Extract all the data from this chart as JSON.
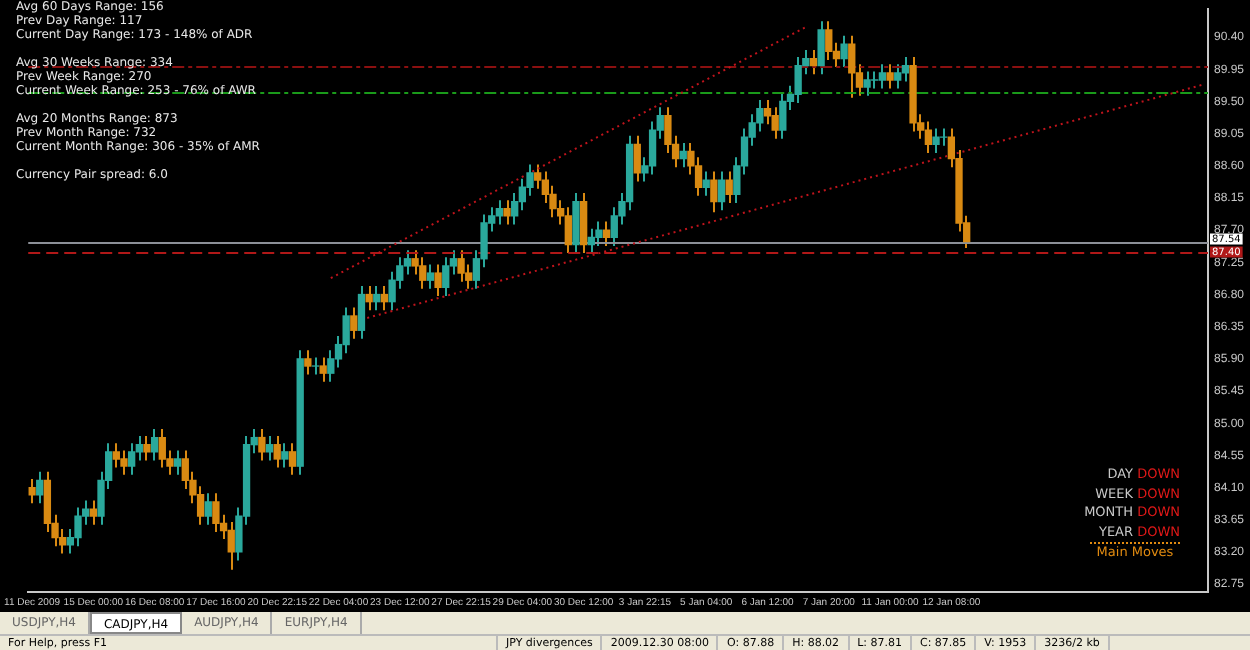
{
  "chart_data": {
    "type": "candlestick",
    "categories": [
      "11 Dec 2009",
      null,
      null,
      null,
      null,
      null,
      null,
      null,
      "15 Dec 00:00",
      null,
      null,
      null,
      null,
      null,
      null,
      null,
      "16 Dec 08:00",
      null,
      null,
      null,
      null,
      null,
      null,
      null,
      "17 Dec 16:00",
      null,
      null,
      null,
      null,
      null,
      null,
      null,
      "20 Dec 22:15",
      null,
      null,
      null,
      null,
      null,
      null,
      null,
      "22 Dec 04:00",
      null,
      null,
      null,
      null,
      null,
      null,
      null,
      "23 Dec 12:00",
      null,
      null,
      null,
      null,
      null,
      null,
      null,
      "27 Dec 22:15",
      null,
      null,
      null,
      null,
      null,
      null,
      null,
      "29 Dec 04:00",
      null,
      null,
      null,
      null,
      null,
      null,
      null,
      "30 Dec 12:00",
      null,
      null,
      null,
      null,
      null,
      null,
      null,
      "3 Jan 22:15",
      null,
      null,
      null,
      null,
      null,
      null,
      null,
      "5 Jan 04:00",
      null,
      null,
      null,
      null,
      null,
      null,
      null,
      "6 Jan 12:00",
      null,
      null,
      null,
      null,
      null,
      null,
      null,
      "7 Jan 20:00",
      null,
      null,
      null,
      null,
      null,
      null,
      null,
      "11 Jan 00:00",
      null,
      null,
      null,
      null,
      null,
      null,
      null,
      "12 Jan 08:00",
      null,
      null,
      null,
      null,
      null,
      null,
      null,
      null,
      null,
      null,
      null,
      null,
      null,
      null,
      null,
      null,
      null,
      null,
      null,
      null,
      null,
      null,
      null,
      null,
      null,
      null,
      null,
      null,
      null,
      null,
      null,
      null,
      null
    ],
    "ohlc": [
      [
        84.1,
        84.22,
        83.88,
        84.0
      ],
      [
        84.0,
        84.32,
        83.88,
        84.2
      ],
      [
        84.2,
        84.32,
        83.48,
        83.6
      ],
      [
        83.6,
        83.72,
        83.28,
        83.4
      ],
      [
        83.4,
        83.52,
        83.18,
        83.3
      ],
      [
        83.3,
        83.52,
        83.18,
        83.4
      ],
      [
        83.4,
        83.82,
        83.28,
        83.7
      ],
      [
        83.7,
        83.92,
        83.58,
        83.8
      ],
      [
        83.8,
        83.92,
        83.58,
        83.7
      ],
      [
        83.7,
        84.32,
        83.58,
        84.2
      ],
      [
        84.2,
        84.72,
        84.08,
        84.6
      ],
      [
        84.6,
        84.72,
        84.38,
        84.5
      ],
      [
        84.5,
        84.62,
        84.28,
        84.4
      ],
      [
        84.4,
        84.72,
        84.28,
        84.6
      ],
      [
        84.6,
        84.82,
        84.48,
        84.7
      ],
      [
        84.7,
        84.82,
        84.48,
        84.6
      ],
      [
        84.6,
        84.92,
        84.48,
        84.8
      ],
      [
        84.8,
        84.92,
        84.38,
        84.5
      ],
      [
        84.5,
        84.62,
        84.28,
        84.4
      ],
      [
        84.4,
        84.62,
        84.28,
        84.5
      ],
      [
        84.5,
        84.62,
        84.08,
        84.2
      ],
      [
        84.2,
        84.32,
        83.88,
        84.0
      ],
      [
        84.0,
        84.12,
        83.58,
        83.7
      ],
      [
        83.7,
        84.02,
        83.58,
        83.9
      ],
      [
        83.9,
        84.02,
        83.48,
        83.6
      ],
      [
        83.6,
        83.72,
        83.38,
        83.5
      ],
      [
        83.5,
        83.62,
        82.95,
        83.2
      ],
      [
        83.2,
        83.82,
        83.08,
        83.7
      ],
      [
        83.7,
        84.82,
        83.58,
        84.7
      ],
      [
        84.7,
        84.92,
        84.58,
        84.8
      ],
      [
        84.8,
        84.92,
        84.48,
        84.6
      ],
      [
        84.6,
        84.82,
        84.48,
        84.7
      ],
      [
        84.7,
        84.82,
        84.38,
        84.5
      ],
      [
        84.5,
        84.72,
        84.38,
        84.6
      ],
      [
        84.6,
        84.72,
        84.28,
        84.4
      ],
      [
        84.4,
        86.02,
        84.28,
        85.9
      ],
      [
        85.9,
        86.02,
        85.68,
        85.8
      ],
      [
        85.8,
        85.92,
        85.68,
        85.8
      ],
      [
        85.8,
        85.92,
        85.58,
        85.7
      ],
      [
        85.7,
        86.02,
        85.58,
        85.9
      ],
      [
        85.9,
        86.22,
        85.78,
        86.1
      ],
      [
        86.1,
        86.62,
        85.98,
        86.5
      ],
      [
        86.5,
        86.62,
        86.18,
        86.3
      ],
      [
        86.3,
        86.92,
        86.18,
        86.8
      ],
      [
        86.8,
        86.92,
        86.58,
        86.7
      ],
      [
        86.7,
        86.92,
        86.58,
        86.8
      ],
      [
        86.8,
        86.92,
        86.58,
        86.7
      ],
      [
        86.7,
        87.12,
        86.58,
        87.0
      ],
      [
        87.0,
        87.32,
        86.88,
        87.2
      ],
      [
        87.2,
        87.42,
        87.08,
        87.3
      ],
      [
        87.3,
        87.42,
        87.08,
        87.2
      ],
      [
        87.2,
        87.32,
        86.88,
        87.0
      ],
      [
        87.0,
        87.22,
        86.88,
        87.1
      ],
      [
        87.1,
        87.22,
        86.78,
        86.9
      ],
      [
        86.9,
        87.32,
        86.78,
        87.2
      ],
      [
        87.2,
        87.42,
        87.08,
        87.3
      ],
      [
        87.3,
        87.42,
        86.98,
        87.1
      ],
      [
        87.1,
        87.22,
        86.88,
        87.0
      ],
      [
        87.0,
        87.42,
        86.88,
        87.3
      ],
      [
        87.3,
        87.92,
        87.18,
        87.8
      ],
      [
        87.8,
        88.02,
        87.68,
        87.9
      ],
      [
        87.9,
        88.12,
        87.78,
        88.0
      ],
      [
        88.0,
        88.12,
        87.78,
        87.9
      ],
      [
        87.9,
        88.22,
        87.78,
        88.1
      ],
      [
        88.1,
        88.42,
        87.98,
        88.3
      ],
      [
        88.3,
        88.62,
        88.18,
        88.5
      ],
      [
        88.5,
        88.62,
        88.28,
        88.4
      ],
      [
        88.4,
        88.52,
        88.08,
        88.2
      ],
      [
        88.2,
        88.32,
        87.88,
        88.0
      ],
      [
        88.0,
        88.12,
        87.78,
        87.9
      ],
      [
        87.9,
        88.02,
        87.38,
        87.5
      ],
      [
        87.5,
        88.22,
        87.38,
        88.1
      ],
      [
        88.1,
        88.22,
        87.38,
        87.5
      ],
      [
        87.5,
        87.72,
        87.38,
        87.6
      ],
      [
        87.6,
        87.82,
        87.48,
        87.7
      ],
      [
        87.7,
        87.82,
        87.48,
        87.6
      ],
      [
        87.6,
        88.02,
        87.48,
        87.9
      ],
      [
        87.9,
        88.22,
        87.78,
        88.1
      ],
      [
        88.1,
        89.02,
        87.98,
        88.9
      ],
      [
        88.9,
        89.02,
        88.38,
        88.5
      ],
      [
        88.5,
        88.72,
        88.38,
        88.6
      ],
      [
        88.6,
        89.22,
        88.48,
        89.1
      ],
      [
        89.1,
        89.42,
        88.98,
        89.3
      ],
      [
        89.3,
        89.42,
        88.78,
        88.9
      ],
      [
        88.9,
        89.02,
        88.58,
        88.7
      ],
      [
        88.7,
        88.92,
        88.58,
        88.8
      ],
      [
        88.8,
        88.92,
        88.48,
        88.6
      ],
      [
        88.6,
        88.72,
        88.18,
        88.3
      ],
      [
        88.3,
        88.52,
        88.18,
        88.4
      ],
      [
        88.4,
        88.52,
        87.95,
        88.1
      ],
      [
        88.1,
        88.52,
        87.98,
        88.4
      ],
      [
        88.4,
        88.52,
        88.08,
        88.2
      ],
      [
        88.2,
        88.72,
        88.08,
        88.6
      ],
      [
        88.6,
        89.12,
        88.48,
        89.0
      ],
      [
        89.0,
        89.32,
        88.88,
        89.2
      ],
      [
        89.2,
        89.52,
        89.08,
        89.4
      ],
      [
        89.4,
        89.52,
        89.18,
        89.3
      ],
      [
        89.3,
        89.42,
        88.98,
        89.1
      ],
      [
        89.1,
        89.62,
        88.98,
        89.5
      ],
      [
        89.5,
        89.72,
        89.38,
        89.6
      ],
      [
        89.6,
        90.12,
        89.48,
        90.0
      ],
      [
        90.0,
        90.22,
        89.88,
        90.1
      ],
      [
        90.1,
        90.22,
        89.88,
        90.0
      ],
      [
        90.0,
        90.62,
        89.88,
        90.5
      ],
      [
        90.5,
        90.62,
        90.08,
        90.2
      ],
      [
        90.2,
        90.32,
        89.98,
        90.1
      ],
      [
        90.1,
        90.42,
        89.98,
        90.3
      ],
      [
        90.3,
        90.42,
        89.55,
        89.9
      ],
      [
        89.9,
        90.02,
        89.58,
        89.7
      ],
      [
        89.7,
        89.92,
        89.58,
        89.8
      ],
      [
        89.8,
        89.92,
        89.68,
        89.8
      ],
      [
        89.8,
        90.02,
        89.68,
        89.9
      ],
      [
        89.9,
        90.02,
        89.68,
        89.8
      ],
      [
        89.8,
        90.02,
        89.68,
        89.9
      ],
      [
        89.9,
        90.12,
        89.78,
        90.0
      ],
      [
        90.0,
        90.12,
        89.08,
        89.2
      ],
      [
        89.2,
        89.32,
        88.98,
        89.1
      ],
      [
        89.1,
        89.22,
        88.78,
        88.9
      ],
      [
        88.9,
        89.12,
        88.78,
        89.0
      ],
      [
        89.0,
        89.12,
        88.88,
        89.0
      ],
      [
        89.0,
        89.12,
        88.58,
        88.7
      ],
      [
        88.7,
        88.82,
        87.68,
        87.8
      ],
      [
        87.8,
        87.9,
        87.45,
        87.54
      ],
      null,
      null,
      null,
      null,
      null,
      null,
      null,
      null,
      null,
      null,
      null,
      null,
      null,
      null,
      null,
      null,
      null,
      null,
      null,
      null,
      null,
      null,
      null,
      null,
      null,
      null,
      null,
      null,
      null,
      null,
      null
    ],
    "colors": [
      "#d98a12",
      "#2aa89c",
      "#d98a12",
      "#d98a12",
      "#d98a12",
      "#2aa89c",
      "#2aa89c",
      "#2aa89c",
      "#d98a12",
      "#2aa89c",
      "#2aa89c",
      "#d98a12",
      "#d98a12",
      "#2aa89c",
      "#2aa89c",
      "#d98a12",
      "#2aa89c",
      "#d98a12",
      "#d98a12",
      "#2aa89c",
      "#d98a12",
      "#d98a12",
      "#d98a12",
      "#2aa89c",
      "#d98a12",
      "#d98a12",
      "#d98a12",
      "#2aa89c",
      "#2aa89c",
      "#2aa89c",
      "#d98a12",
      "#2aa89c",
      "#d98a12",
      "#2aa89c",
      "#d98a12",
      "#2aa89c",
      "#d98a12",
      "#2aa89c",
      "#d98a12",
      "#2aa89c",
      "#2aa89c",
      "#2aa89c",
      "#d98a12",
      "#2aa89c",
      "#d98a12",
      "#2aa89c",
      "#d98a12",
      "#2aa89c",
      "#2aa89c",
      "#2aa89c",
      "#d98a12",
      "#d98a12",
      "#2aa89c",
      "#d98a12",
      "#2aa89c",
      "#2aa89c",
      "#d98a12",
      "#d98a12",
      "#2aa89c",
      "#2aa89c",
      "#2aa89c",
      "#2aa89c",
      "#d98a12",
      "#2aa89c",
      "#2aa89c",
      "#2aa89c",
      "#d98a12",
      "#d98a12",
      "#d98a12",
      "#d98a12",
      "#d98a12",
      "#2aa89c",
      "#d98a12",
      "#2aa89c",
      "#2aa89c",
      "#d98a12",
      "#2aa89c",
      "#2aa89c",
      "#2aa89c",
      "#d98a12",
      "#2aa89c",
      "#2aa89c",
      "#2aa89c",
      "#d98a12",
      "#d98a12",
      "#2aa89c",
      "#d98a12",
      "#d98a12",
      "#2aa89c",
      "#d98a12",
      "#2aa89c",
      "#d98a12",
      "#2aa89c",
      "#2aa89c",
      "#2aa89c",
      "#2aa89c",
      "#d98a12",
      "#d98a12",
      "#2aa89c",
      "#2aa89c",
      "#2aa89c",
      "#2aa89c",
      "#d98a12",
      "#2aa89c",
      "#d98a12",
      "#d98a12",
      "#2aa89c",
      "#d98a12",
      "#d98a12",
      "#2aa89c",
      "#2aa89c",
      "#2aa89c",
      "#d98a12",
      "#2aa89c",
      "#2aa89c",
      "#d98a12",
      "#d98a12",
      "#d98a12",
      "#2aa89c",
      "#2aa89c",
      "#d98a12",
      "#d98a12",
      "#d98a12",
      null,
      null,
      null,
      null,
      null,
      null,
      null,
      null,
      null,
      null,
      null,
      null,
      null,
      null,
      null,
      null,
      null,
      null,
      null,
      null,
      null,
      null,
      null,
      null,
      null,
      null,
      null,
      null,
      null,
      null,
      null
    ],
    "series": [
      {
        "type": "line",
        "color": "#c0141c",
        "line_style": "dotted",
        "values": [
          null,
          null,
          null,
          null,
          null,
          null,
          null,
          null,
          null,
          null,
          null,
          null,
          null,
          null,
          null,
          null,
          null,
          null,
          null,
          null,
          null,
          null,
          null,
          null,
          null,
          null,
          null,
          null,
          null,
          null,
          null,
          null,
          null,
          null,
          null,
          null,
          null,
          null,
          null,
          87.03,
          null,
          null,
          null,
          null,
          null,
          null,
          null,
          null,
          null,
          null,
          null,
          null,
          null,
          null,
          null,
          null,
          null,
          null,
          null,
          null,
          null,
          null,
          null,
          null,
          null,
          null,
          null,
          null,
          null,
          null,
          null,
          null,
          null,
          null,
          null,
          null,
          null,
          null,
          null,
          null,
          null,
          null,
          null,
          null,
          null,
          null,
          null,
          null,
          null,
          null,
          null,
          null,
          null,
          null,
          null,
          null,
          null,
          null,
          null,
          null,
          null,
          90.54,
          null,
          null,
          null,
          null,
          null,
          null,
          null,
          null,
          null,
          null,
          null,
          null,
          null,
          null,
          null,
          null,
          null,
          null,
          null,
          null,
          null,
          null,
          null,
          null,
          null,
          null,
          null,
          null,
          null,
          null,
          null,
          null,
          null,
          null,
          null,
          null,
          null,
          null,
          null,
          null,
          null,
          null,
          null,
          null,
          null,
          null,
          null,
          null,
          null,
          null,
          null,
          null
        ]
      },
      {
        "type": "line",
        "color": "#c0141c",
        "line_style": "dotted",
        "values": [
          null,
          null,
          null,
          null,
          null,
          null,
          null,
          null,
          null,
          null,
          null,
          null,
          null,
          null,
          null,
          null,
          null,
          null,
          null,
          null,
          null,
          null,
          null,
          null,
          null,
          null,
          null,
          null,
          null,
          null,
          null,
          null,
          null,
          null,
          null,
          null,
          null,
          null,
          null,
          null,
          null,
          null,
          null,
          86.45,
          null,
          null,
          null,
          null,
          null,
          null,
          null,
          null,
          null,
          null,
          null,
          null,
          null,
          null,
          null,
          null,
          null,
          null,
          null,
          null,
          null,
          null,
          null,
          null,
          null,
          null,
          null,
          null,
          null,
          null,
          null,
          null,
          null,
          null,
          null,
          null,
          null,
          null,
          null,
          null,
          null,
          null,
          null,
          null,
          null,
          null,
          null,
          null,
          null,
          null,
          null,
          null,
          null,
          null,
          null,
          null,
          null,
          null,
          null,
          null,
          null,
          null,
          null,
          null,
          null,
          null,
          null,
          null,
          null,
          null,
          null,
          null,
          null,
          null,
          null,
          null,
          null,
          null,
          null,
          null,
          null,
          null,
          null,
          null,
          null,
          null,
          null,
          null,
          null,
          null,
          null,
          null,
          null,
          null,
          null,
          null,
          null,
          null,
          null,
          null,
          null,
          null,
          null,
          null,
          null,
          null,
          null,
          null,
          null,
          89.74
        ]
      }
    ],
    "ylim": [
      82.64,
      90.79
    ],
    "yticks": [
      {
        "value": 90.4,
        "label": "90.40"
      },
      {
        "value": 89.95,
        "label": "89.95"
      },
      {
        "value": 89.5,
        "label": "89.50"
      },
      {
        "value": 89.05,
        "label": "89.05"
      },
      {
        "value": 88.6,
        "label": "88.60"
      },
      {
        "value": 88.15,
        "label": "88.15"
      },
      {
        "value": 87.7,
        "label": "87.70"
      },
      {
        "value": 87.25,
        "label": "87.25"
      },
      {
        "value": 86.8,
        "label": "86.80"
      },
      {
        "value": 86.35,
        "label": "86.35"
      },
      {
        "value": 85.9,
        "label": "85.90"
      },
      {
        "value": 85.45,
        "label": "85.45"
      },
      {
        "value": 85.0,
        "label": "85.00"
      },
      {
        "value": 84.55,
        "label": "84.55"
      },
      {
        "value": 84.1,
        "label": "84.10"
      },
      {
        "value": 83.65,
        "label": "83.65"
      },
      {
        "value": 83.2,
        "label": "83.20"
      },
      {
        "value": 82.75,
        "label": "82.75"
      }
    ],
    "ref_lines": [
      {
        "axis": "y",
        "value": 89.99,
        "color": "#8b1010",
        "line_style": "dashdot"
      },
      {
        "axis": "y",
        "value": 89.63,
        "color": "#1a9a1a",
        "line_style": "dashdot"
      },
      {
        "axis": "y",
        "value": 87.54,
        "label": "87.54",
        "color": "#8c9098",
        "line_style": "solid"
      },
      {
        "axis": "y",
        "value": 87.4,
        "label": "87.40",
        "color": "#b01818",
        "line_style": "dashed"
      }
    ],
    "grid": false,
    "legend": false,
    "annotations": [
      "Avg 60 Days Range: 156",
      "Prev Day Range: 117",
      "Current Day Range: 173 - 148% of ADR",
      "Avg 30 Weeks Range: 334",
      "Prev Week Range: 270",
      "Current Week Range: 253 - 76% of AWR",
      "Avg 20 Months Range: 873",
      "Prev Month Range: 732",
      "Current Month Range: 306 - 35% of AMR",
      "Currency Pair spread: 6.0",
      "DAY DOWN",
      "WEEK DOWN",
      "MONTH DOWN",
      "YEAR DOWN",
      "Main Moves",
      "USDJPY,H4",
      "CADJPY,H4",
      "AUDJPY,H4",
      "EURJPY,H4",
      "For Help, press F1",
      "JPY divergences",
      "2009.12.30 08:00",
      "O: 87.88",
      "H: 88.02",
      "L: 87.81",
      "C: 87.85",
      "V: 1953",
      "3236/2 kb"
    ]
  }
}
